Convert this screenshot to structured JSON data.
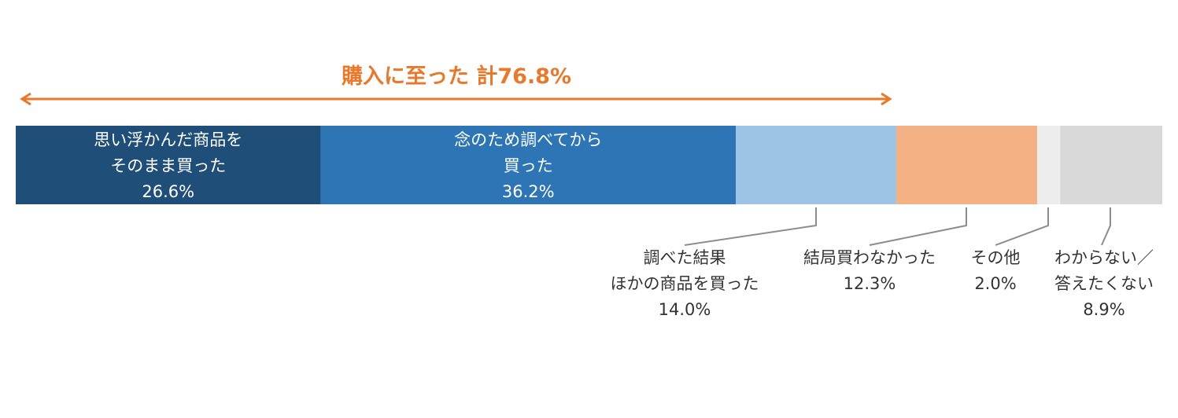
{
  "chart_data": {
    "type": "bar",
    "orientation": "horizontal-stacked-100",
    "headline": {
      "text": "購入に至った 計76.8%",
      "color": "#E8782A"
    },
    "segments": [
      {
        "label": [
          "思い浮かんだ商品を",
          "そのまま買った"
        ],
        "value": 26.6,
        "value_label": "26.6%",
        "color": "#1F4E79",
        "label_position": "inside"
      },
      {
        "label": [
          "念のため調べてから",
          "買った"
        ],
        "value": 36.2,
        "value_label": "36.2%",
        "color": "#2E75B6",
        "label_position": "inside"
      },
      {
        "label": [
          "調べた結果",
          "ほかの商品を買った"
        ],
        "value": 14.0,
        "value_label": "14.0%",
        "color": "#9DC3E6",
        "label_position": "below"
      },
      {
        "label": [
          "結局買わなかった"
        ],
        "value": 12.3,
        "value_label": "12.3%",
        "color": "#F4B183",
        "label_position": "below"
      },
      {
        "label": [
          "その他"
        ],
        "value": 2.0,
        "value_label": "2.0%",
        "color": "#EDEDED",
        "label_position": "below"
      },
      {
        "label": [
          "わからない／",
          "答えたくない"
        ],
        "value": 8.9,
        "value_label": "8.9%",
        "color": "#D9D9D9",
        "label_position": "below"
      }
    ],
    "bracket_segments": [
      0,
      1,
      2
    ]
  }
}
